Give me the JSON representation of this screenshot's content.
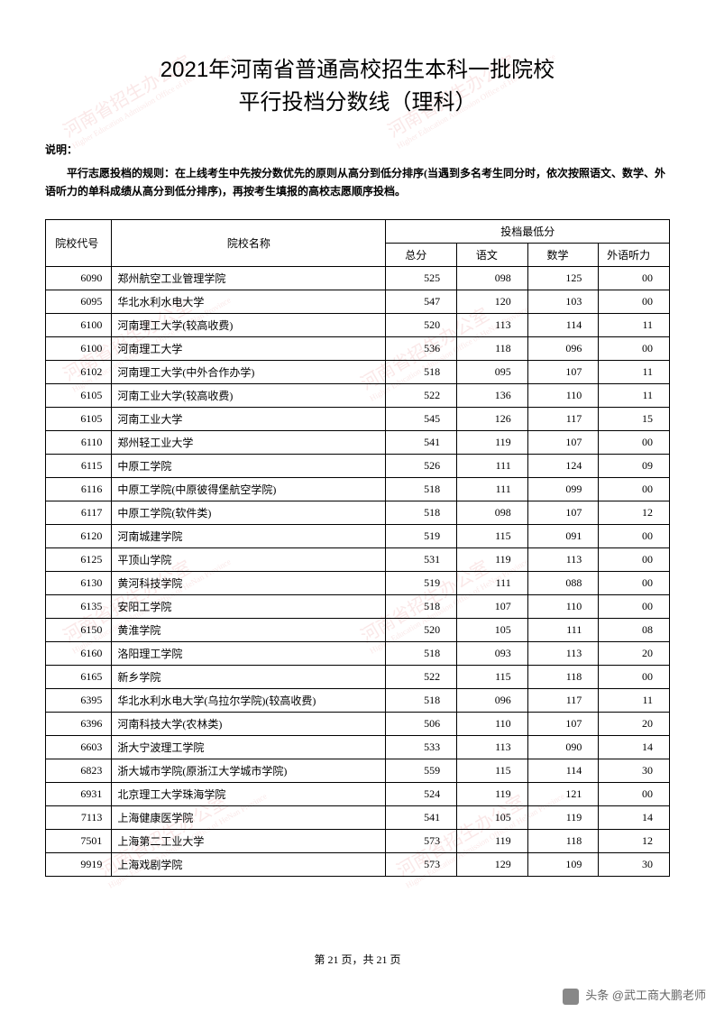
{
  "title_line1": "2021年河南省普通高校招生本科一批院校",
  "title_line2": "平行投档分数线（理科）",
  "explain_label": "说明：",
  "explain_text": "平行志愿投档的规则：在上线考生中先按分数优先的原则从高分到低分排序(当遇到多名考生同分时，依次按照语文、数学、外语听力的单科成绩从高分到低分排序)，再按考生填报的高校志愿顺序投档。",
  "watermark_main": "河南省招生办公室",
  "watermark_sub": "Higher Education Admission Office of HeNan Province",
  "table": {
    "header": {
      "code": "院校代号",
      "name": "院校名称",
      "score_group": "投档最低分",
      "total": "总分",
      "chinese": "语文",
      "math": "数学",
      "listening": "外语听力"
    },
    "rows": [
      {
        "code": "6090",
        "name": "郑州航空工业管理学院",
        "total": "525",
        "chinese": "098",
        "math": "125",
        "listening": "00"
      },
      {
        "code": "6095",
        "name": "华北水利水电大学",
        "total": "547",
        "chinese": "120",
        "math": "103",
        "listening": "00"
      },
      {
        "code": "6100",
        "name": "河南理工大学(较高收费)",
        "total": "520",
        "chinese": "113",
        "math": "114",
        "listening": "11"
      },
      {
        "code": "6100",
        "name": "河南理工大学",
        "total": "536",
        "chinese": "118",
        "math": "096",
        "listening": "00"
      },
      {
        "code": "6102",
        "name": "河南理工大学(中外合作办学)",
        "total": "518",
        "chinese": "095",
        "math": "107",
        "listening": "11"
      },
      {
        "code": "6105",
        "name": "河南工业大学(较高收费)",
        "total": "522",
        "chinese": "136",
        "math": "110",
        "listening": "11"
      },
      {
        "code": "6105",
        "name": "河南工业大学",
        "total": "545",
        "chinese": "126",
        "math": "117",
        "listening": "15"
      },
      {
        "code": "6110",
        "name": "郑州轻工业大学",
        "total": "541",
        "chinese": "119",
        "math": "107",
        "listening": "00"
      },
      {
        "code": "6115",
        "name": "中原工学院",
        "total": "526",
        "chinese": "111",
        "math": "124",
        "listening": "09"
      },
      {
        "code": "6116",
        "name": "中原工学院(中原彼得堡航空学院)",
        "total": "518",
        "chinese": "111",
        "math": "099",
        "listening": "00"
      },
      {
        "code": "6117",
        "name": "中原工学院(软件类)",
        "total": "518",
        "chinese": "098",
        "math": "107",
        "listening": "12"
      },
      {
        "code": "6120",
        "name": "河南城建学院",
        "total": "519",
        "chinese": "115",
        "math": "091",
        "listening": "00"
      },
      {
        "code": "6125",
        "name": "平顶山学院",
        "total": "531",
        "chinese": "119",
        "math": "113",
        "listening": "00"
      },
      {
        "code": "6130",
        "name": "黄河科技学院",
        "total": "519",
        "chinese": "111",
        "math": "088",
        "listening": "00"
      },
      {
        "code": "6135",
        "name": "安阳工学院",
        "total": "518",
        "chinese": "107",
        "math": "110",
        "listening": "00"
      },
      {
        "code": "6150",
        "name": "黄淮学院",
        "total": "520",
        "chinese": "105",
        "math": "111",
        "listening": "08"
      },
      {
        "code": "6160",
        "name": "洛阳理工学院",
        "total": "518",
        "chinese": "093",
        "math": "113",
        "listening": "20"
      },
      {
        "code": "6165",
        "name": "新乡学院",
        "total": "522",
        "chinese": "115",
        "math": "118",
        "listening": "00"
      },
      {
        "code": "6395",
        "name": "华北水利水电大学(乌拉尔学院)(较高收费)",
        "total": "518",
        "chinese": "096",
        "math": "117",
        "listening": "11"
      },
      {
        "code": "6396",
        "name": "河南科技大学(农林类)",
        "total": "506",
        "chinese": "110",
        "math": "107",
        "listening": "20"
      },
      {
        "code": "6603",
        "name": "浙大宁波理工学院",
        "total": "533",
        "chinese": "113",
        "math": "090",
        "listening": "14"
      },
      {
        "code": "6823",
        "name": "浙大城市学院(原浙江大学城市学院)",
        "total": "559",
        "chinese": "115",
        "math": "114",
        "listening": "30"
      },
      {
        "code": "6931",
        "name": "北京理工大学珠海学院",
        "total": "524",
        "chinese": "119",
        "math": "121",
        "listening": "00"
      },
      {
        "code": "7113",
        "name": "上海健康医学院",
        "total": "541",
        "chinese": "105",
        "math": "119",
        "listening": "14"
      },
      {
        "code": "7501",
        "name": "上海第二工业大学",
        "total": "573",
        "chinese": "119",
        "math": "118",
        "listening": "12"
      },
      {
        "code": "9919",
        "name": "上海戏剧学院",
        "total": "573",
        "chinese": "129",
        "math": "109",
        "listening": "30"
      }
    ]
  },
  "footer": {
    "page_text": "第 21 页，共 21 页"
  },
  "attribution": "头条 @武工商大鹏老师"
}
